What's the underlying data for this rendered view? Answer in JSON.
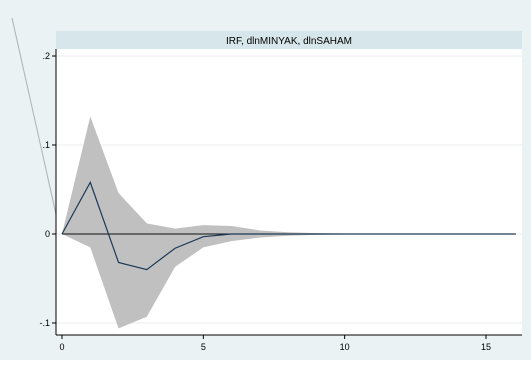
{
  "chart_data": {
    "type": "line",
    "title": "IRF, dlnMINYAK, dlnSAHAM",
    "xlabel": "",
    "ylabel": "",
    "xlim": [
      0,
      16
    ],
    "ylim": [
      -0.1,
      0.2
    ],
    "x_ticks": [
      "0",
      "5",
      "10",
      "15"
    ],
    "y_ticks": [
      "-.1",
      "0",
      ".1",
      ".2"
    ],
    "grid": true,
    "series": [
      {
        "role": "irf",
        "x": [
          0,
          1,
          2,
          3,
          4,
          5,
          6,
          7,
          8,
          9,
          10,
          11,
          12,
          13,
          14,
          15,
          16
        ],
        "values": [
          0,
          0.058,
          -0.032,
          -0.04,
          -0.016,
          -0.003,
          0,
          0,
          0,
          0,
          0,
          0,
          0,
          0,
          0,
          0,
          0
        ]
      },
      {
        "role": "ci_band",
        "x": [
          0,
          1,
          2,
          3,
          4,
          5,
          6,
          7,
          8,
          9,
          10,
          11,
          12,
          13,
          14,
          15,
          16
        ],
        "upper": [
          0,
          0.132,
          0.046,
          0.012,
          0.006,
          0.01,
          0.009,
          0.004,
          0.002,
          0.001,
          0.0005,
          0,
          0,
          0,
          0,
          0,
          0
        ],
        "lower": [
          0,
          -0.015,
          -0.106,
          -0.093,
          -0.037,
          -0.015,
          -0.008,
          -0.004,
          -0.002,
          -0.001,
          -0.0005,
          0,
          0,
          0,
          0,
          0,
          0
        ]
      }
    ]
  },
  "colors": {
    "outer_background": "#eaf2f3",
    "plot_background": "#ffffff",
    "title_band": "#d7e6ea",
    "band": "#c0c0c0",
    "line": "#1b3a57",
    "grid": "#e9eef0",
    "axis": "#000000"
  }
}
